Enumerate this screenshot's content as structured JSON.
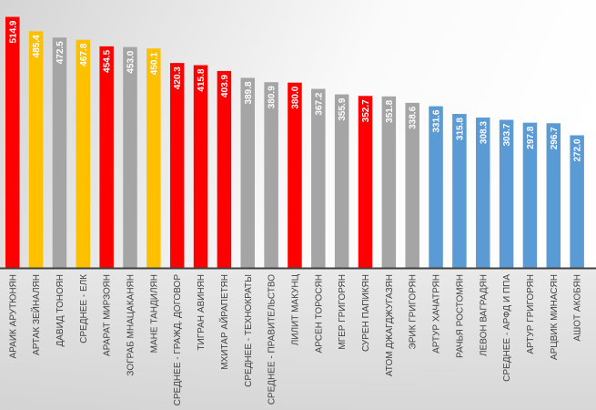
{
  "chart_data": {
    "type": "bar",
    "title": "",
    "xlabel": "",
    "ylabel": "",
    "ylim": [
      0,
      540
    ],
    "grid": false,
    "legend": "none",
    "categories": [
      "АРАИК АРУТЮНЯН",
      "АРТАК ЗЕЙНАЛЯН",
      "ДАВИД ТОНОЯН",
      "СРЕДНЕЕ - ЕЛК",
      "АРАРАТ МИРЗОЯН",
      "ЗОГРАБ МНАЦАКАНЯН",
      "МАНЕ ТАНДИЛЯН",
      "СРЕДНЕЕ - ГРАЖД. ДОГОВОР",
      "ТИГРАН АВИНЯН",
      "МХИТАР АЙРАПЕТЯН",
      "СРЕДНЕЕ - ТЕХНОКРАТЫ",
      "СРЕДНЕЕ - ПРАВИТЕЛЬСТВО",
      "ЛИЛИТ МАКУНЦ",
      "АРСЕН ТОРОСЯН",
      "МГЕР ГРИГОРЯН",
      "СУРЕН ПАПИКЯН",
      "АТОМ ДЖАГДЖУГАЗЯН",
      "ЭРИК ГРИГОРЯН",
      "АРТУР ХАЧАТРЯН",
      "РАЧЬЯ РОСТОМЯН",
      "ЛЕВОН ВАГРАДЯН",
      "СРЕДНЕЕ - АРФД И ППА",
      "АРТУР ГРИГОРЯН",
      "АРЦВИК МИНАСЯН",
      "АШОТ АКОБЯН"
    ],
    "values": [
      514.9,
      485.4,
      472.5,
      467.8,
      454.5,
      453.0,
      450.1,
      420.3,
      415.8,
      403.9,
      389.8,
      380.9,
      380.0,
      367.2,
      355.9,
      352.7,
      351.8,
      338.6,
      331.6,
      315.8,
      308.3,
      303.7,
      297.8,
      296.7,
      272.0
    ],
    "value_labels": [
      "514.9",
      "485.4",
      "472.5",
      "467.8",
      "454.5",
      "453.0",
      "450.1",
      "420.3",
      "415.8",
      "403.9",
      "389.8",
      "380.9",
      "380.0",
      "367.2",
      "355.9",
      "352.7",
      "351.8",
      "338.6",
      "331.6",
      "315.8",
      "308.3",
      "303.7",
      "297.8",
      "296.7",
      "272.0"
    ],
    "groups": [
      "red",
      "yellow",
      "gray",
      "yellow",
      "red",
      "gray",
      "yellow",
      "red",
      "red",
      "red",
      "gray",
      "gray",
      "red",
      "gray",
      "gray",
      "red",
      "gray",
      "gray",
      "blue",
      "blue",
      "blue",
      "blue",
      "blue",
      "blue",
      "blue"
    ],
    "colors": {
      "red": "#ff0000",
      "yellow": "#ffc000",
      "gray": "#a5a5a5",
      "blue": "#5b9bd5"
    }
  }
}
